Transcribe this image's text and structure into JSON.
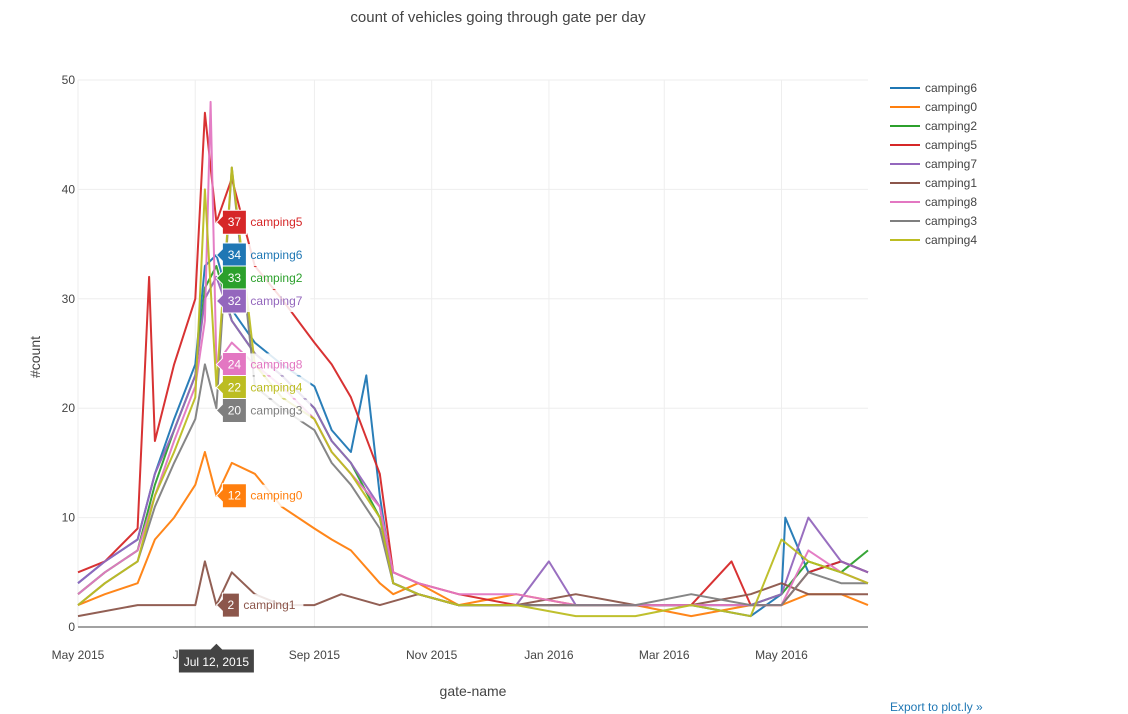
{
  "chart_data": {
    "type": "line",
    "title": "count of vehicles going through gate per day",
    "xlabel": "gate-name",
    "ylabel": "#count",
    "ylim": [
      0,
      50
    ],
    "xlim": [
      "2015-05-01",
      "2016-06-15"
    ],
    "y_ticks": [
      0,
      10,
      20,
      30,
      40,
      50
    ],
    "x_ticks": [
      {
        "date": "2015-05-01",
        "label": "May 2015"
      },
      {
        "date": "2015-07-01",
        "label": "Jul 2015"
      },
      {
        "date": "2015-09-01",
        "label": "Sep 2015"
      },
      {
        "date": "2015-11-01",
        "label": "Nov 2015"
      },
      {
        "date": "2016-01-01",
        "label": "Jan 2016"
      },
      {
        "date": "2016-03-01",
        "label": "Mar 2016"
      },
      {
        "date": "2016-05-01",
        "label": "May 2016"
      }
    ],
    "grid": true,
    "legend_position": "right",
    "hover": {
      "date": "2015-07-12",
      "label": "Jul 12, 2015",
      "values": [
        {
          "series": "camping5",
          "value": 37
        },
        {
          "series": "camping6",
          "value": 34
        },
        {
          "series": "camping2",
          "value": 33
        },
        {
          "series": "camping7",
          "value": 32
        },
        {
          "series": "camping8",
          "value": 24
        },
        {
          "series": "camping4",
          "value": 22
        },
        {
          "series": "camping3",
          "value": 20
        },
        {
          "series": "camping0",
          "value": 12
        },
        {
          "series": "camping1",
          "value": 2
        }
      ]
    },
    "series": [
      {
        "name": "camping6",
        "color": "#1f77b4",
        "points": [
          [
            "2015-05-01",
            4
          ],
          [
            "2015-05-15",
            6
          ],
          [
            "2015-06-01",
            8
          ],
          [
            "2015-06-10",
            14
          ],
          [
            "2015-06-20",
            19
          ],
          [
            "2015-07-01",
            24
          ],
          [
            "2015-07-06",
            33
          ],
          [
            "2015-07-12",
            34
          ],
          [
            "2015-07-20",
            29
          ],
          [
            "2015-08-01",
            26
          ],
          [
            "2015-08-15",
            24
          ],
          [
            "2015-09-01",
            22
          ],
          [
            "2015-09-10",
            18
          ],
          [
            "2015-09-20",
            16
          ],
          [
            "2015-09-28",
            23
          ],
          [
            "2015-10-05",
            12
          ],
          [
            "2015-10-12",
            4
          ],
          [
            "2015-10-25",
            3
          ],
          [
            "2015-11-15",
            2
          ],
          [
            "2015-12-15",
            2
          ],
          [
            "2016-01-15",
            2
          ],
          [
            "2016-02-15",
            2
          ],
          [
            "2016-03-15",
            2
          ],
          [
            "2016-04-15",
            1
          ],
          [
            "2016-05-01",
            3
          ],
          [
            "2016-05-03",
            10
          ],
          [
            "2016-05-15",
            5
          ],
          [
            "2016-06-01",
            6
          ],
          [
            "2016-06-15",
            5
          ]
        ]
      },
      {
        "name": "camping0",
        "color": "#ff7f0e",
        "points": [
          [
            "2015-05-01",
            2
          ],
          [
            "2015-05-15",
            3
          ],
          [
            "2015-06-01",
            4
          ],
          [
            "2015-06-10",
            8
          ],
          [
            "2015-06-20",
            10
          ],
          [
            "2015-07-01",
            13
          ],
          [
            "2015-07-06",
            16
          ],
          [
            "2015-07-12",
            12
          ],
          [
            "2015-07-20",
            15
          ],
          [
            "2015-08-01",
            14
          ],
          [
            "2015-08-15",
            11
          ],
          [
            "2015-09-01",
            9
          ],
          [
            "2015-09-10",
            8
          ],
          [
            "2015-09-20",
            7
          ],
          [
            "2015-10-05",
            4
          ],
          [
            "2015-10-12",
            3
          ],
          [
            "2015-10-25",
            4
          ],
          [
            "2015-11-15",
            2
          ],
          [
            "2015-12-15",
            3
          ],
          [
            "2016-01-15",
            2
          ],
          [
            "2016-02-15",
            2
          ],
          [
            "2016-03-15",
            1
          ],
          [
            "2016-04-15",
            2
          ],
          [
            "2016-05-01",
            2
          ],
          [
            "2016-05-15",
            3
          ],
          [
            "2016-06-01",
            3
          ],
          [
            "2016-06-15",
            2
          ]
        ]
      },
      {
        "name": "camping2",
        "color": "#2ca02c",
        "points": [
          [
            "2015-05-01",
            3
          ],
          [
            "2015-05-15",
            5
          ],
          [
            "2015-06-01",
            7
          ],
          [
            "2015-06-10",
            13
          ],
          [
            "2015-06-20",
            18
          ],
          [
            "2015-07-01",
            23
          ],
          [
            "2015-07-06",
            31
          ],
          [
            "2015-07-12",
            33
          ],
          [
            "2015-07-20",
            28
          ],
          [
            "2015-08-01",
            25
          ],
          [
            "2015-08-15",
            23
          ],
          [
            "2015-09-01",
            20
          ],
          [
            "2015-09-10",
            17
          ],
          [
            "2015-09-20",
            15
          ],
          [
            "2015-10-05",
            10
          ],
          [
            "2015-10-12",
            4
          ],
          [
            "2015-10-25",
            3
          ],
          [
            "2015-11-15",
            2
          ],
          [
            "2015-12-15",
            2
          ],
          [
            "2016-01-15",
            2
          ],
          [
            "2016-02-15",
            2
          ],
          [
            "2016-03-15",
            2
          ],
          [
            "2016-04-15",
            2
          ],
          [
            "2016-05-01",
            3
          ],
          [
            "2016-05-15",
            6
          ],
          [
            "2016-06-01",
            5
          ],
          [
            "2016-06-15",
            7
          ]
        ]
      },
      {
        "name": "camping5",
        "color": "#d62728",
        "points": [
          [
            "2015-05-01",
            5
          ],
          [
            "2015-05-15",
            6
          ],
          [
            "2015-06-01",
            9
          ],
          [
            "2015-06-07",
            32
          ],
          [
            "2015-06-10",
            17
          ],
          [
            "2015-06-20",
            24
          ],
          [
            "2015-07-01",
            30
          ],
          [
            "2015-07-06",
            47
          ],
          [
            "2015-07-12",
            37
          ],
          [
            "2015-07-20",
            41
          ],
          [
            "2015-08-01",
            33
          ],
          [
            "2015-08-15",
            30
          ],
          [
            "2015-09-01",
            26
          ],
          [
            "2015-09-10",
            24
          ],
          [
            "2015-09-20",
            21
          ],
          [
            "2015-10-05",
            14
          ],
          [
            "2015-10-12",
            5
          ],
          [
            "2015-10-25",
            4
          ],
          [
            "2015-11-15",
            3
          ],
          [
            "2015-12-15",
            2
          ],
          [
            "2016-01-15",
            2
          ],
          [
            "2016-02-15",
            2
          ],
          [
            "2016-03-15",
            2
          ],
          [
            "2016-04-05",
            6
          ],
          [
            "2016-04-15",
            2
          ],
          [
            "2016-05-01",
            2
          ],
          [
            "2016-05-15",
            5
          ],
          [
            "2016-06-01",
            6
          ],
          [
            "2016-06-15",
            5
          ]
        ]
      },
      {
        "name": "camping7",
        "color": "#9467bd",
        "points": [
          [
            "2015-05-01",
            4
          ],
          [
            "2015-05-15",
            6
          ],
          [
            "2015-06-01",
            8
          ],
          [
            "2015-06-10",
            14
          ],
          [
            "2015-06-20",
            18
          ],
          [
            "2015-07-01",
            23
          ],
          [
            "2015-07-06",
            30
          ],
          [
            "2015-07-12",
            32
          ],
          [
            "2015-07-20",
            28
          ],
          [
            "2015-08-01",
            25
          ],
          [
            "2015-08-15",
            23
          ],
          [
            "2015-09-01",
            20
          ],
          [
            "2015-09-10",
            17
          ],
          [
            "2015-09-20",
            15
          ],
          [
            "2015-10-05",
            11
          ],
          [
            "2015-10-12",
            4
          ],
          [
            "2015-10-25",
            3
          ],
          [
            "2015-11-15",
            2
          ],
          [
            "2015-12-15",
            2
          ],
          [
            "2016-01-01",
            6
          ],
          [
            "2016-01-15",
            2
          ],
          [
            "2016-02-15",
            2
          ],
          [
            "2016-03-15",
            2
          ],
          [
            "2016-04-15",
            2
          ],
          [
            "2016-05-01",
            3
          ],
          [
            "2016-05-15",
            10
          ],
          [
            "2016-06-01",
            6
          ],
          [
            "2016-06-15",
            5
          ]
        ]
      },
      {
        "name": "camping1",
        "color": "#8c564b",
        "points": [
          [
            "2015-05-01",
            1
          ],
          [
            "2015-06-01",
            2
          ],
          [
            "2015-07-01",
            2
          ],
          [
            "2015-07-06",
            6
          ],
          [
            "2015-07-12",
            2
          ],
          [
            "2015-07-20",
            5
          ],
          [
            "2015-08-01",
            3
          ],
          [
            "2015-08-15",
            2
          ],
          [
            "2015-09-01",
            2
          ],
          [
            "2015-09-15",
            3
          ],
          [
            "2015-10-05",
            2
          ],
          [
            "2015-10-25",
            3
          ],
          [
            "2015-11-15",
            2
          ],
          [
            "2015-12-15",
            2
          ],
          [
            "2016-01-15",
            3
          ],
          [
            "2016-02-15",
            2
          ],
          [
            "2016-03-15",
            2
          ],
          [
            "2016-04-15",
            3
          ],
          [
            "2016-05-01",
            4
          ],
          [
            "2016-05-15",
            3
          ],
          [
            "2016-06-01",
            3
          ],
          [
            "2016-06-15",
            3
          ]
        ]
      },
      {
        "name": "camping8",
        "color": "#e377c2",
        "points": [
          [
            "2015-05-01",
            3
          ],
          [
            "2015-05-15",
            5
          ],
          [
            "2015-06-01",
            7
          ],
          [
            "2015-06-10",
            12
          ],
          [
            "2015-06-20",
            17
          ],
          [
            "2015-07-01",
            22
          ],
          [
            "2015-07-06",
            28
          ],
          [
            "2015-07-09",
            48
          ],
          [
            "2015-07-12",
            24
          ],
          [
            "2015-07-20",
            26
          ],
          [
            "2015-08-01",
            24
          ],
          [
            "2015-08-15",
            22
          ],
          [
            "2015-09-01",
            19
          ],
          [
            "2015-09-10",
            16
          ],
          [
            "2015-09-20",
            14
          ],
          [
            "2015-10-05",
            11
          ],
          [
            "2015-10-12",
            5
          ],
          [
            "2015-10-25",
            4
          ],
          [
            "2015-11-15",
            3
          ],
          [
            "2015-12-15",
            3
          ],
          [
            "2016-01-15",
            2
          ],
          [
            "2016-02-15",
            2
          ],
          [
            "2016-03-15",
            2
          ],
          [
            "2016-04-15",
            2
          ],
          [
            "2016-05-01",
            2
          ],
          [
            "2016-05-15",
            7
          ],
          [
            "2016-06-01",
            5
          ],
          [
            "2016-06-15",
            4
          ]
        ]
      },
      {
        "name": "camping3",
        "color": "#7f7f7f",
        "points": [
          [
            "2015-05-01",
            2
          ],
          [
            "2015-05-15",
            4
          ],
          [
            "2015-06-01",
            6
          ],
          [
            "2015-06-10",
            11
          ],
          [
            "2015-06-20",
            15
          ],
          [
            "2015-07-01",
            19
          ],
          [
            "2015-07-06",
            24
          ],
          [
            "2015-07-12",
            20
          ],
          [
            "2015-07-20",
            42
          ],
          [
            "2015-08-01",
            22
          ],
          [
            "2015-08-15",
            20
          ],
          [
            "2015-09-01",
            18
          ],
          [
            "2015-09-10",
            15
          ],
          [
            "2015-09-20",
            13
          ],
          [
            "2015-10-05",
            9
          ],
          [
            "2015-10-12",
            4
          ],
          [
            "2015-10-25",
            3
          ],
          [
            "2015-11-15",
            2
          ],
          [
            "2015-12-15",
            2
          ],
          [
            "2016-01-15",
            2
          ],
          [
            "2016-02-15",
            2
          ],
          [
            "2016-03-15",
            3
          ],
          [
            "2016-04-15",
            2
          ],
          [
            "2016-05-01",
            2
          ],
          [
            "2016-05-15",
            5
          ],
          [
            "2016-06-01",
            4
          ],
          [
            "2016-06-15",
            4
          ]
        ]
      },
      {
        "name": "camping4",
        "color": "#bcbd22",
        "points": [
          [
            "2015-05-01",
            2
          ],
          [
            "2015-05-15",
            4
          ],
          [
            "2015-06-01",
            6
          ],
          [
            "2015-06-10",
            12
          ],
          [
            "2015-06-20",
            16
          ],
          [
            "2015-07-01",
            21
          ],
          [
            "2015-07-06",
            40
          ],
          [
            "2015-07-12",
            22
          ],
          [
            "2015-07-20",
            42
          ],
          [
            "2015-08-01",
            24
          ],
          [
            "2015-08-15",
            21
          ],
          [
            "2015-09-01",
            19
          ],
          [
            "2015-09-10",
            16
          ],
          [
            "2015-09-20",
            14
          ],
          [
            "2015-10-05",
            10
          ],
          [
            "2015-10-12",
            4
          ],
          [
            "2015-10-25",
            3
          ],
          [
            "2015-11-15",
            2
          ],
          [
            "2015-12-15",
            2
          ],
          [
            "2016-01-15",
            1
          ],
          [
            "2016-02-15",
            1
          ],
          [
            "2016-03-15",
            2
          ],
          [
            "2016-04-15",
            1
          ],
          [
            "2016-05-01",
            8
          ],
          [
            "2016-05-15",
            6
          ],
          [
            "2016-06-01",
            5
          ],
          [
            "2016-06-15",
            4
          ]
        ]
      }
    ]
  },
  "footer": {
    "export_link": "Export to plot.ly »"
  }
}
